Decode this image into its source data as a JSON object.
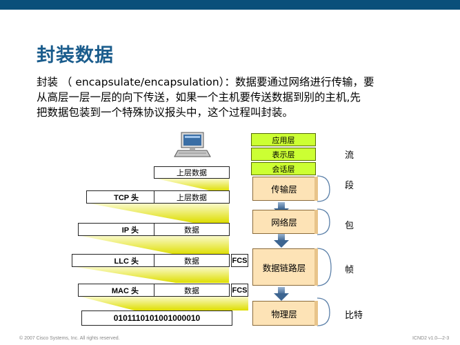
{
  "slide": {
    "title": "封装数据",
    "paragraph_lines": [
      "封装 （ encapsulate/encapsulation）：数据要通过网络进行传输，要",
      "从高层一层一层的向下传送，如果一个主机要传送数据到别的主机,先",
      "把数据包装到一个特殊协议报头中，这个过程叫封装。"
    ],
    "footer_left": "© 2007 Cisco Systems, Inc. All rights reserved.",
    "footer_right": "ICND2 v1.0—2-3"
  },
  "encapsulation": {
    "upper_data": "上层数据",
    "tcp_header": "TCP 头",
    "tcp_data": "上层数据",
    "ip_header": "IP 头",
    "ip_data": "数据",
    "llc_header": "LLC 头",
    "llc_data": "数据",
    "llc_fcs": "FCS",
    "mac_header": "MAC 头",
    "mac_data": "数据",
    "mac_fcs": "FCS",
    "bits": "0101110101001000010"
  },
  "layers": {
    "application": "应用层",
    "presentation": "表示层",
    "session": "会话层",
    "transport": "传输层",
    "network": "网络层",
    "datalink": "数据链路层",
    "physical": "物理层"
  },
  "units": {
    "stream": "流",
    "segment": "段",
    "packet": "包",
    "frame": "帧",
    "bit": "比特"
  },
  "colors": {
    "title": "#1a5c8c",
    "highlight_yellow": "#ccff33",
    "layer_orange": "#fde3b6",
    "arrow_blue": "#5a7fa8"
  },
  "icons": [
    "computer-icon"
  ]
}
